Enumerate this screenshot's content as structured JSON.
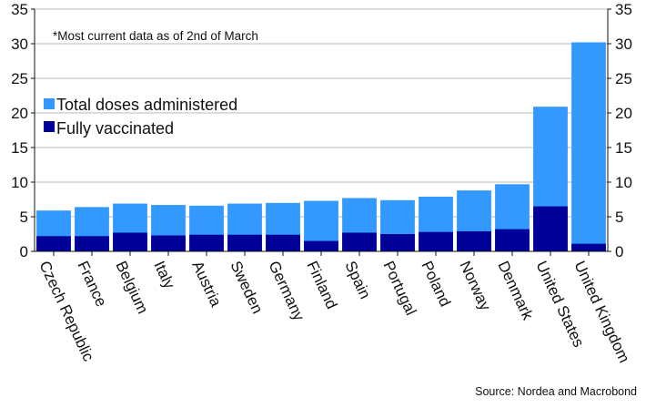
{
  "chart_data": {
    "type": "bar",
    "stacking": "overlay",
    "categories": [
      "Czech Republic",
      "France",
      "Belgium",
      "Italy",
      "Austria",
      "Sweden",
      "Germany",
      "Finland",
      "Spain",
      "Portugal",
      "Poland",
      "Norway",
      "Denmark",
      "United States",
      "United Kingdom"
    ],
    "series": [
      {
        "name": "Total doses administered",
        "color": "#3399ff",
        "values": [
          5.9,
          6.4,
          6.9,
          6.7,
          6.6,
          6.9,
          7.0,
          7.3,
          7.7,
          7.4,
          7.9,
          8.8,
          9.7,
          20.9,
          30.2
        ]
      },
      {
        "name": "Fully vaccinated",
        "color": "#000099",
        "values": [
          2.2,
          2.2,
          2.7,
          2.3,
          2.4,
          2.4,
          2.4,
          1.5,
          2.7,
          2.5,
          2.8,
          2.9,
          3.2,
          6.5,
          1.1
        ]
      }
    ],
    "ylim": [
      0,
      35
    ],
    "yticks": [
      0,
      5,
      10,
      15,
      20,
      25,
      30,
      35
    ],
    "y_axis_sides": "both",
    "grid": true,
    "legend_position": "upper-left",
    "annotation": "*Most current data as of 2nd of March",
    "source": "Source: Nordea and Macrobond"
  }
}
